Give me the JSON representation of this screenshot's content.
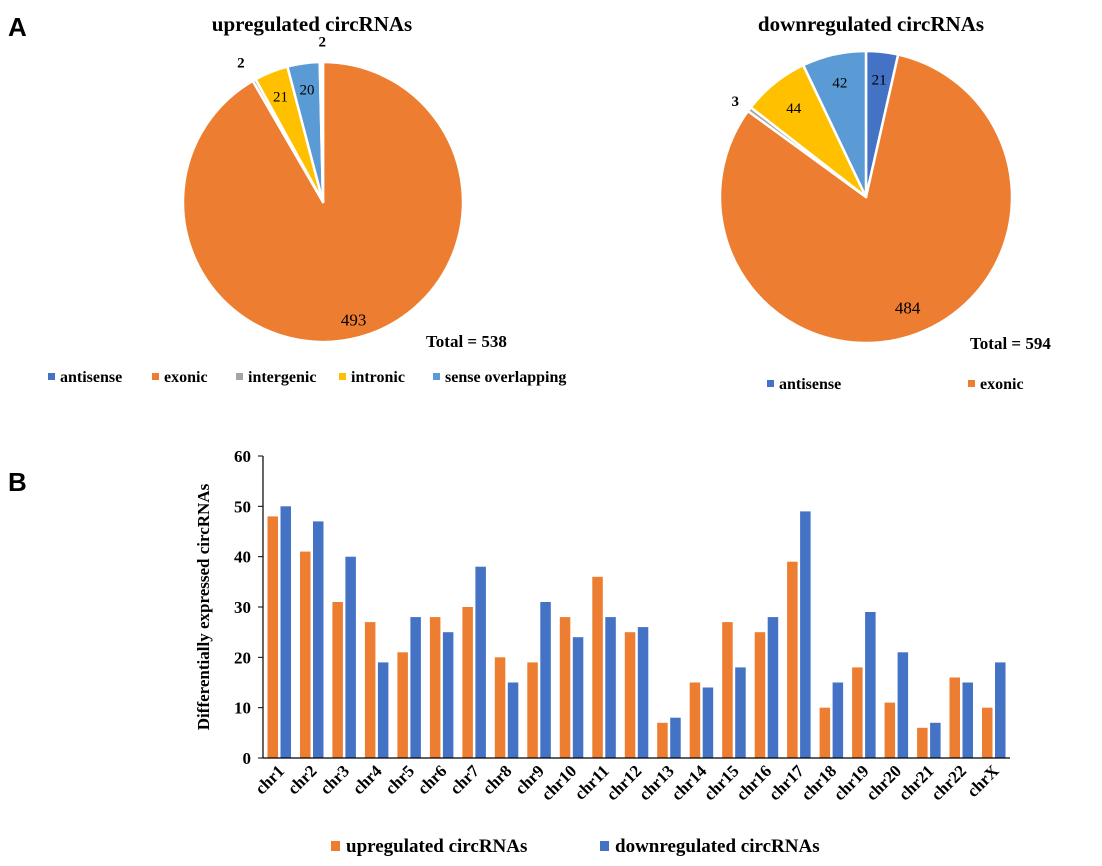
{
  "panels": {
    "a": "A",
    "b": "B"
  },
  "colors": {
    "antisense": "#4472C4",
    "exonic": "#ED7D31",
    "intergenic": "#A5A5A5",
    "intronic": "#FFC000",
    "sense_overlapping": "#5B9BD5",
    "upregulated": "#ED7D31",
    "downregulated": "#4472C4"
  },
  "chart_data": [
    {
      "type": "pie",
      "title": "upregulated circRNAs",
      "total_label": "Total = 538",
      "slices": [
        {
          "name": "antisense",
          "value": 0,
          "label": ""
        },
        {
          "name": "exonic",
          "value": 493,
          "label": "493"
        },
        {
          "name": "intergenic",
          "value": 2,
          "label": "2"
        },
        {
          "name": "intronic",
          "value": 21,
          "label": "21"
        },
        {
          "name": "sense overlapping",
          "value": 20,
          "label": "20"
        },
        {
          "name": "",
          "value": 2,
          "label": "2"
        }
      ],
      "legend": [
        "antisense",
        "exonic",
        "intergenic",
        "intronic",
        "sense overlapping"
      ],
      "legend_position": "bottom"
    },
    {
      "type": "pie",
      "title": "downregulated circRNAs",
      "total_label": "Total = 594",
      "slices": [
        {
          "name": "antisense",
          "value": 21,
          "label": "21"
        },
        {
          "name": "exonic",
          "value": 484,
          "label": "484"
        },
        {
          "name": "intergenic",
          "value": 3,
          "label": "3"
        },
        {
          "name": "intronic",
          "value": 44,
          "label": "44"
        },
        {
          "name": "sense overlapping",
          "value": 42,
          "label": "42"
        }
      ],
      "legend": [
        "antisense",
        "exonic"
      ],
      "legend_position": "bottom"
    },
    {
      "type": "bar",
      "title": "",
      "xlabel": "",
      "ylabel": "Differentially expressed circRNAs",
      "ylim": [
        0,
        60
      ],
      "yticks": [
        0,
        10,
        20,
        30,
        40,
        50,
        60
      ],
      "categories": [
        "chr1",
        "chr2",
        "chr3",
        "chr4",
        "chr5",
        "chr6",
        "chr7",
        "chr8",
        "chr9",
        "chr10",
        "chr11",
        "chr12",
        "chr13",
        "chr14",
        "chr15",
        "chr16",
        "chr17",
        "chr18",
        "chr19",
        "chr20",
        "chr21",
        "chr22",
        "chrX"
      ],
      "series": [
        {
          "name": "upregulated circRNAs",
          "values": [
            48,
            41,
            31,
            27,
            21,
            28,
            30,
            20,
            19,
            28,
            36,
            25,
            7,
            15,
            27,
            25,
            39,
            10,
            18,
            11,
            6,
            16,
            10
          ]
        },
        {
          "name": "downregulated circRNAs",
          "values": [
            50,
            47,
            40,
            19,
            28,
            25,
            38,
            15,
            31,
            24,
            28,
            26,
            8,
            14,
            18,
            28,
            49,
            15,
            29,
            21,
            7,
            15,
            19
          ]
        }
      ],
      "legend_position": "bottom"
    }
  ]
}
